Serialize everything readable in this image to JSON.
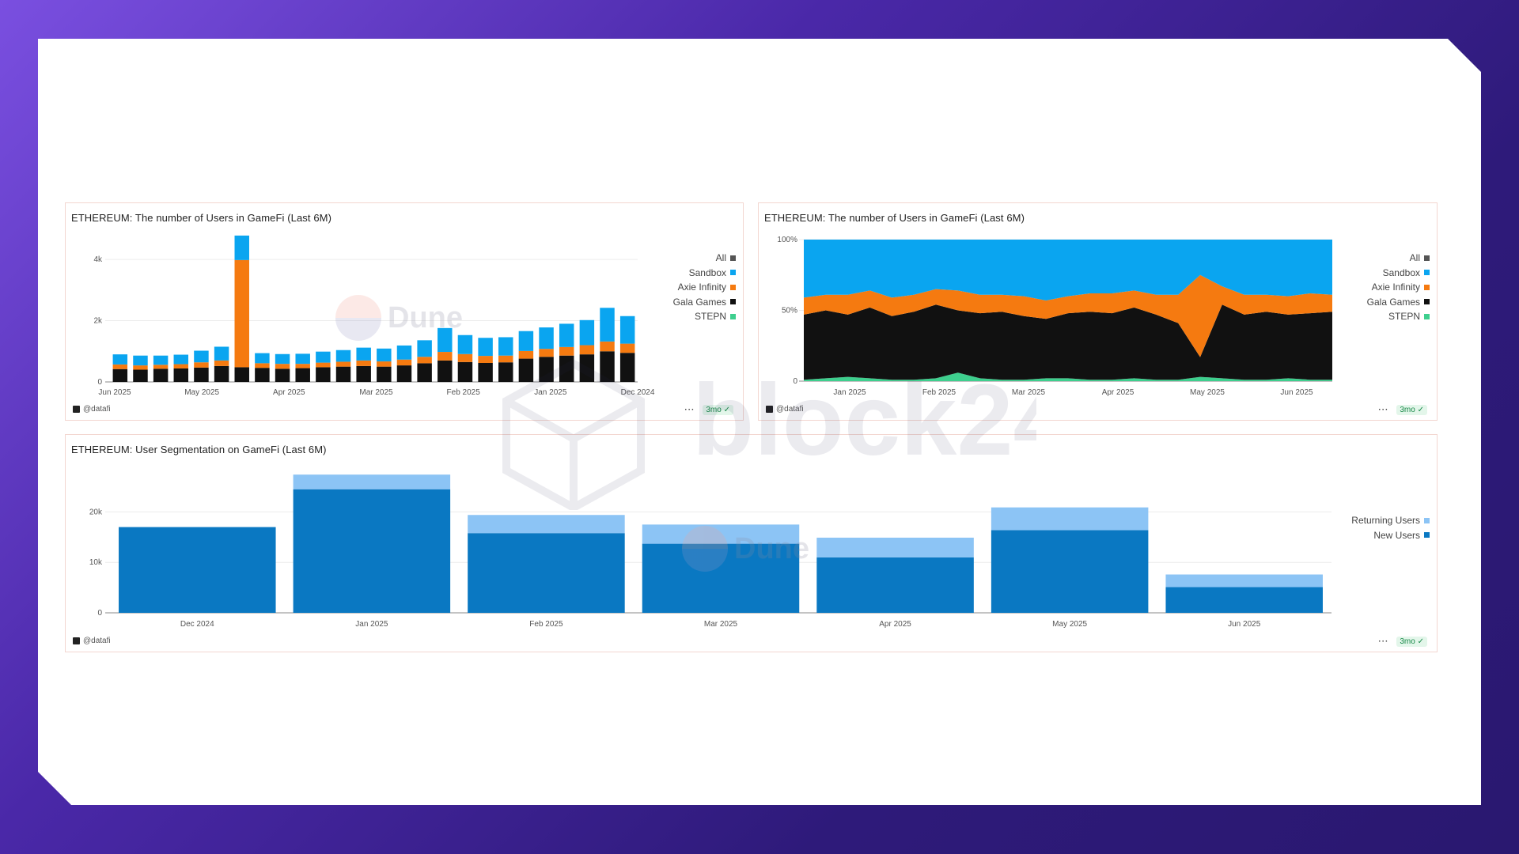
{
  "watermark_text": "block24",
  "dune_watermark": "Dune",
  "panels": [
    {
      "title": "ETHEREUM: The number of Users in GameFi (Last 6M)",
      "author": "@datafi",
      "freshness": "3mo",
      "more": "···"
    },
    {
      "title": "ETHEREUM: The number of Users in GameFi (Last 6M)",
      "author": "@datafi",
      "freshness": "3mo",
      "more": "···"
    },
    {
      "title": "ETHEREUM: User Segmentation on GameFi (Last 6M)",
      "author": "@datafi",
      "freshness": "3mo",
      "more": "···"
    }
  ],
  "legend1": [
    {
      "name": "All",
      "color": "#555555"
    },
    {
      "name": "Sandbox",
      "color": "#0aa5f0"
    },
    {
      "name": "Axie Infinity",
      "color": "#f57a10"
    },
    {
      "name": "Gala Games",
      "color": "#111111"
    },
    {
      "name": "STEPN",
      "color": "#3ecf8e"
    }
  ],
  "legend2": [
    {
      "name": "All",
      "color": "#555555"
    },
    {
      "name": "Sandbox",
      "color": "#0aa5f0"
    },
    {
      "name": "Axie Infinity",
      "color": "#f57a10"
    },
    {
      "name": "Gala Games",
      "color": "#111111"
    },
    {
      "name": "STEPN",
      "color": "#3ecf8e"
    }
  ],
  "legend3": [
    {
      "name": "Returning Users",
      "color": "#8cc4f5"
    },
    {
      "name": "New Users",
      "color": "#0a78c2"
    }
  ],
  "chart_data": [
    {
      "type": "bar",
      "stacked": true,
      "x_reversed": true,
      "title": "ETHEREUM: The number of Users in GameFi (Last 6M)",
      "x_tick_labels": [
        "Jun 2025",
        "May 2025",
        "Apr 2025",
        "Mar 2025",
        "Feb 2025",
        "Jan 2025",
        "Dec 2024"
      ],
      "y_tick_labels": [
        "0",
        "2k",
        "4k"
      ],
      "ylim": [
        0,
        4700
      ],
      "grid": true,
      "legend": "right",
      "series_order_bottom_to_top": [
        "Gala Games",
        "Axie Infinity",
        "Sandbox"
      ],
      "weekly_series": {
        "weeks": [
          "Jun 2025 W4",
          "Jun 2025 W3",
          "Jun 2025 W2",
          "Jun 2025 W1",
          "May 2025 W4",
          "May 2025 W3",
          "May 2025 W2",
          "May 2025 W1",
          "Apr 2025 W4",
          "Apr 2025 W3",
          "Apr 2025 W2",
          "Apr 2025 W1",
          "Mar 2025 W4",
          "Mar 2025 W3",
          "Mar 2025 W2",
          "Mar 2025 W1",
          "Feb 2025 W4",
          "Feb 2025 W3",
          "Feb 2025 W2",
          "Feb 2025 W1",
          "Jan 2025 W4",
          "Jan 2025 W3",
          "Jan 2025 W2",
          "Jan 2025 W1",
          "Dec 2024 W4",
          "Dec 2024 W3"
        ],
        "Gala Games": [
          420,
          400,
          430,
          440,
          470,
          520,
          480,
          460,
          430,
          450,
          480,
          500,
          520,
          500,
          540,
          610,
          700,
          650,
          620,
          640,
          760,
          820,
          860,
          900,
          1000,
          950
        ],
        "Axie Infinity": [
          150,
          140,
          130,
          140,
          170,
          180,
          3500,
          150,
          160,
          140,
          150,
          160,
          180,
          170,
          190,
          210,
          280,
          260,
          230,
          220,
          250,
          260,
          280,
          300,
          320,
          300
        ],
        "Sandbox": [
          330,
          320,
          300,
          310,
          380,
          450,
          800,
          330,
          320,
          330,
          360,
          380,
          420,
          420,
          460,
          540,
          780,
          620,
          590,
          600,
          650,
          700,
          760,
          820,
          1100,
          900
        ]
      }
    },
    {
      "type": "area",
      "stacked_percent": true,
      "title": "ETHEREUM: The number of Users in GameFi (Last 6M)",
      "x_tick_labels": [
        "Jan 2025",
        "Feb 2025",
        "Mar 2025",
        "Apr 2025",
        "May 2025",
        "Jun 2025"
      ],
      "y_tick_labels": [
        "0",
        "50%",
        "100%"
      ],
      "ylim": [
        0,
        100
      ],
      "legend": "right",
      "weekly_series": {
        "weeks": [
          "Dec 2024 W4",
          "Jan 2025 W1",
          "Jan 2025 W2",
          "Jan 2025 W3",
          "Jan 2025 W4",
          "Feb 2025 W1",
          "Feb 2025 W2",
          "Feb 2025 W3",
          "Feb 2025 W4",
          "Mar 2025 W1",
          "Mar 2025 W2",
          "Mar 2025 W3",
          "Mar 2025 W4",
          "Apr 2025 W1",
          "Apr 2025 W2",
          "Apr 2025 W3",
          "Apr 2025 W4",
          "May 2025 W1",
          "May 2025 W2",
          "May 2025 W3",
          "May 2025 W4",
          "Jun 2025 W1",
          "Jun 2025 W2",
          "Jun 2025 W3",
          "Jun 2025 W4"
        ],
        "STEPN": [
          1,
          2,
          3,
          2,
          1,
          1,
          2,
          6,
          2,
          1,
          1,
          2,
          2,
          1,
          1,
          2,
          1,
          1,
          3,
          2,
          1,
          1,
          2,
          1,
          1
        ],
        "Gala Games": [
          46,
          48,
          44,
          50,
          45,
          48,
          52,
          44,
          46,
          48,
          45,
          42,
          46,
          48,
          47,
          50,
          46,
          40,
          14,
          52,
          46,
          48,
          45,
          47,
          48
        ],
        "Axie Infinity": [
          12,
          11,
          14,
          12,
          13,
          12,
          11,
          14,
          13,
          12,
          14,
          13,
          12,
          13,
          14,
          12,
          14,
          20,
          58,
          13,
          14,
          12,
          13,
          14,
          12
        ],
        "Sandbox": [
          41,
          39,
          39,
          36,
          41,
          39,
          35,
          36,
          39,
          39,
          40,
          43,
          40,
          38,
          38,
          36,
          39,
          39,
          25,
          33,
          39,
          39,
          40,
          38,
          39
        ]
      }
    },
    {
      "type": "bar",
      "stacked": true,
      "title": "ETHEREUM: User Segmentation on GameFi (Last 6M)",
      "categories": [
        "Dec 2024",
        "Jan 2025",
        "Feb 2025",
        "Mar 2025",
        "Apr 2025",
        "May 2025",
        "Jun 2025"
      ],
      "y_tick_labels": [
        "0",
        "10k",
        "20k"
      ],
      "ylim": [
        0,
        29000
      ],
      "grid": true,
      "legend": "right",
      "series": [
        {
          "name": "New Users",
          "values": [
            17000,
            24500,
            15800,
            13700,
            11000,
            16400,
            5100
          ]
        },
        {
          "name": "Returning Users",
          "values": [
            0,
            2900,
            3600,
            3800,
            3900,
            4500,
            2500
          ]
        }
      ]
    }
  ]
}
